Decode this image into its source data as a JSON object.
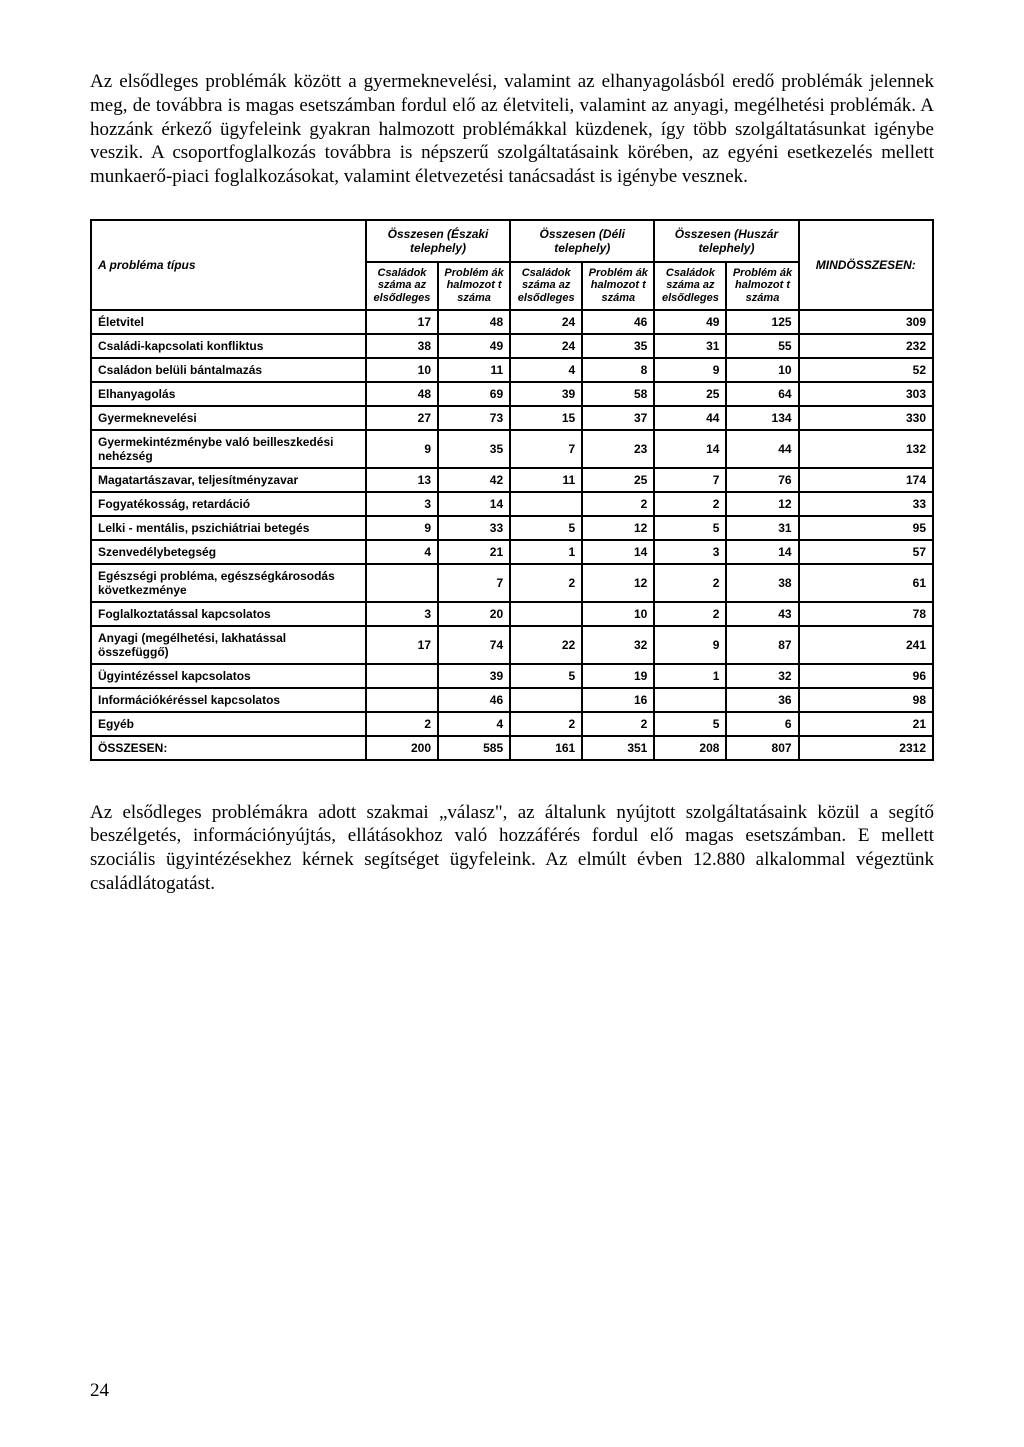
{
  "paragraph_top": "Az elsődleges problémák között a gyermeknevelési, valamint az elhanyagolásból eredő problémák jelennek meg, de továbbra is magas esetszámban fordul elő az életviteli, valamint az anyagi, megélhetési problémák. A hozzánk érkező ügyfeleink gyakran halmozott problémákkal küzdenek, így több szolgáltatásunkat igénybe veszik. A csoportfoglalkozás továbbra is népszerű szolgáltatásaink körében, az egyéni esetkezelés mellett munkaerő-piaci foglalkozásokat, valamint életvezetési tanácsadást is igénybe vesznek.",
  "paragraph_bottom": "Az elsődleges problémákra adott szakmai „válasz\", az általunk nyújtott szolgáltatásaink közül a segítő beszélgetés, információnyújtás, ellátásokhoz való hozzáférés fordul elő magas esetszámban. E mellett szociális ügyintézésekhez kérnek segítséget ügyfeleink. Az elmúlt évben 12.880 alkalommal végeztünk családlátogatást.",
  "page_number": "24",
  "table": {
    "row_header_label": "A probléma típus",
    "grand_header": "MINDÖSSZESEN:",
    "groups": [
      "Összesen (Északi telephely)",
      "Összesen (Déli telephely)",
      "Összesen (Huszár telephely)"
    ],
    "subheaders": {
      "families": "Családok száma az elsődleges",
      "problems": "Problémák halmozott száma"
    },
    "sub_families": "Családok száma az elsődleges",
    "sub_problems": "Problém ák halmozot t száma",
    "rows": [
      {
        "label": "Életvitel",
        "v": [
          "17",
          "48",
          "24",
          "46",
          "49",
          "125",
          "309"
        ]
      },
      {
        "label": "Családi-kapcsolati konfliktus",
        "v": [
          "38",
          "49",
          "24",
          "35",
          "31",
          "55",
          "232"
        ]
      },
      {
        "label": "Családon belüli bántalmazás",
        "v": [
          "10",
          "11",
          "4",
          "8",
          "9",
          "10",
          "52"
        ]
      },
      {
        "label": "Elhanyagolás",
        "v": [
          "48",
          "69",
          "39",
          "58",
          "25",
          "64",
          "303"
        ]
      },
      {
        "label": "Gyermeknevelési",
        "v": [
          "27",
          "73",
          "15",
          "37",
          "44",
          "134",
          "330"
        ]
      },
      {
        "label": "Gyermekintézménybe való beilleszkedési nehézség",
        "v": [
          "9",
          "35",
          "7",
          "23",
          "14",
          "44",
          "132"
        ]
      },
      {
        "label": "Magatartászavar, teljesítményzavar",
        "v": [
          "13",
          "42",
          "11",
          "25",
          "7",
          "76",
          "174"
        ]
      },
      {
        "label": "Fogyatékosság, retardáció",
        "v": [
          "3",
          "14",
          "",
          "2",
          "2",
          "12",
          "33"
        ]
      },
      {
        "label": "Lelki - mentális, pszichiátriai betegés",
        "v": [
          "9",
          "33",
          "5",
          "12",
          "5",
          "31",
          "95"
        ]
      },
      {
        "label": "Szenvedélybetegség",
        "v": [
          "4",
          "21",
          "1",
          "14",
          "3",
          "14",
          "57"
        ]
      },
      {
        "label": "Egészségi probléma, egészségkárosodás következménye",
        "v": [
          "",
          "7",
          "2",
          "12",
          "2",
          "38",
          "61"
        ]
      },
      {
        "label": "Foglalkoztatással kapcsolatos",
        "v": [
          "3",
          "20",
          "",
          "10",
          "2",
          "43",
          "78"
        ]
      },
      {
        "label": "Anyagi (megélhetési, lakhatással összefüggő)",
        "v": [
          "17",
          "74",
          "22",
          "32",
          "9",
          "87",
          "241"
        ]
      },
      {
        "label": "Ügyintézéssel kapcsolatos",
        "v": [
          "",
          "39",
          "5",
          "19",
          "1",
          "32",
          "96"
        ]
      },
      {
        "label": "Információkéréssel kapcsolatos",
        "v": [
          "",
          "46",
          "",
          "16",
          "",
          "36",
          "98"
        ]
      },
      {
        "label": "Egyéb",
        "v": [
          "2",
          "4",
          "2",
          "2",
          "5",
          "6",
          "21"
        ]
      }
    ],
    "total": {
      "label": "ÖSSZESEN:",
      "v": [
        "200",
        "585",
        "161",
        "351",
        "208",
        "807",
        "2312"
      ]
    }
  }
}
